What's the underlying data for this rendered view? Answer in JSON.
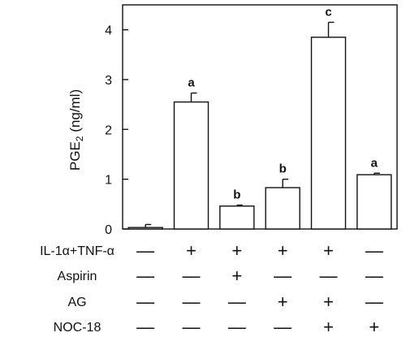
{
  "chart_data": {
    "type": "bar",
    "ylabel_main": "PGE",
    "ylabel_sub": "2",
    "ylabel_unit": " (ng/ml)",
    "ylim": [
      0,
      4.5
    ],
    "yticks": [
      "0",
      "1",
      "2",
      "3",
      "4"
    ],
    "grid": false,
    "values": [
      0.03,
      2.55,
      0.46,
      0.83,
      3.85,
      1.09
    ],
    "errors": [
      0.06,
      0.18,
      0.02,
      0.17,
      0.3,
      0.03
    ],
    "significance": [
      "",
      "a",
      "b",
      "b",
      "c",
      "a"
    ],
    "treatment_rows": [
      {
        "label": "IL-1α+TNF-α",
        "marks": [
          "—",
          "+",
          "+",
          "+",
          "+",
          "—"
        ]
      },
      {
        "label": "Aspirin",
        "marks": [
          "—",
          "—",
          "+",
          "—",
          "—",
          "—"
        ]
      },
      {
        "label": "AG",
        "marks": [
          "—",
          "—",
          "—",
          "+",
          "+",
          "—"
        ]
      },
      {
        "label": "NOC-18",
        "marks": [
          "—",
          "—",
          "—",
          "—",
          "+",
          "+"
        ]
      }
    ]
  }
}
